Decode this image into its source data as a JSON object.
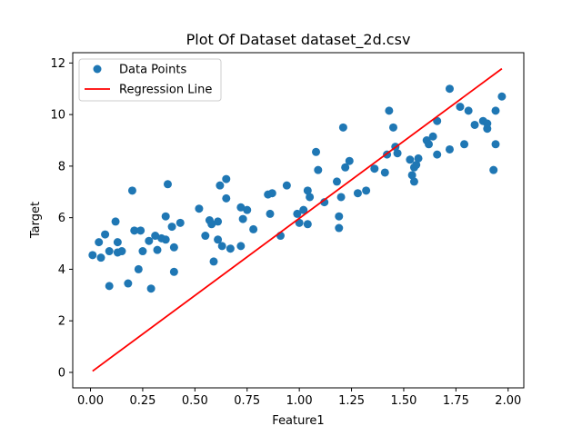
{
  "chart_data": {
    "type": "scatter",
    "title": "Plot Of Dataset dataset_2d.csv",
    "xlabel": "Feature1",
    "ylabel": "Target",
    "xlim": [
      -0.085,
      2.075
    ],
    "ylim": [
      -0.6,
      12.4
    ],
    "xticks": [
      "0.00",
      "0.25",
      "0.50",
      "0.75",
      "1.00",
      "1.25",
      "1.50",
      "1.75",
      "2.00"
    ],
    "yticks": [
      "0",
      "2",
      "4",
      "6",
      "8",
      "10",
      "12"
    ],
    "legend_placement": "top-left",
    "grid": false,
    "series": [
      {
        "name": "Data Points",
        "kind": "scatter",
        "color": "#1f77b4",
        "points": [
          [
            0.01,
            4.55
          ],
          [
            0.04,
            5.05
          ],
          [
            0.05,
            4.45
          ],
          [
            0.07,
            5.35
          ],
          [
            0.09,
            3.35
          ],
          [
            0.09,
            4.7
          ],
          [
            0.12,
            5.85
          ],
          [
            0.13,
            5.05
          ],
          [
            0.13,
            4.65
          ],
          [
            0.15,
            4.7
          ],
          [
            0.18,
            3.45
          ],
          [
            0.2,
            7.05
          ],
          [
            0.21,
            5.5
          ],
          [
            0.23,
            4.0
          ],
          [
            0.24,
            5.5
          ],
          [
            0.25,
            4.7
          ],
          [
            0.28,
            5.1
          ],
          [
            0.29,
            3.25
          ],
          [
            0.31,
            5.3
          ],
          [
            0.32,
            4.75
          ],
          [
            0.34,
            5.2
          ],
          [
            0.36,
            5.15
          ],
          [
            0.36,
            6.05
          ],
          [
            0.37,
            7.3
          ],
          [
            0.39,
            5.65
          ],
          [
            0.4,
            4.85
          ],
          [
            0.4,
            3.9
          ],
          [
            0.43,
            5.8
          ],
          [
            0.52,
            6.35
          ],
          [
            0.55,
            5.3
          ],
          [
            0.57,
            5.9
          ],
          [
            0.58,
            5.75
          ],
          [
            0.59,
            4.3
          ],
          [
            0.61,
            5.15
          ],
          [
            0.61,
            5.85
          ],
          [
            0.62,
            7.25
          ],
          [
            0.63,
            4.9
          ],
          [
            0.65,
            7.5
          ],
          [
            0.65,
            6.75
          ],
          [
            0.67,
            4.8
          ],
          [
            0.72,
            4.9
          ],
          [
            0.72,
            6.4
          ],
          [
            0.73,
            5.95
          ],
          [
            0.75,
            6.3
          ],
          [
            0.78,
            5.55
          ],
          [
            0.85,
            6.9
          ],
          [
            0.86,
            6.15
          ],
          [
            0.87,
            6.95
          ],
          [
            0.91,
            5.3
          ],
          [
            0.94,
            7.25
          ],
          [
            0.99,
            6.15
          ],
          [
            1.0,
            5.8
          ],
          [
            1.02,
            6.3
          ],
          [
            1.04,
            5.75
          ],
          [
            1.04,
            7.05
          ],
          [
            1.05,
            6.8
          ],
          [
            1.08,
            8.55
          ],
          [
            1.09,
            7.85
          ],
          [
            1.12,
            6.6
          ],
          [
            1.18,
            7.4
          ],
          [
            1.19,
            6.05
          ],
          [
            1.19,
            5.6
          ],
          [
            1.2,
            6.8
          ],
          [
            1.21,
            9.5
          ],
          [
            1.22,
            7.95
          ],
          [
            1.24,
            8.2
          ],
          [
            1.28,
            6.95
          ],
          [
            1.32,
            7.05
          ],
          [
            1.36,
            7.9
          ],
          [
            1.41,
            7.75
          ],
          [
            1.42,
            8.45
          ],
          [
            1.43,
            10.15
          ],
          [
            1.45,
            9.5
          ],
          [
            1.46,
            8.75
          ],
          [
            1.47,
            8.5
          ],
          [
            1.53,
            8.25
          ],
          [
            1.54,
            7.65
          ],
          [
            1.55,
            7.95
          ],
          [
            1.55,
            7.4
          ],
          [
            1.56,
            8.05
          ],
          [
            1.57,
            8.3
          ],
          [
            1.61,
            9.0
          ],
          [
            1.62,
            8.85
          ],
          [
            1.64,
            9.15
          ],
          [
            1.66,
            8.45
          ],
          [
            1.66,
            9.75
          ],
          [
            1.72,
            11.0
          ],
          [
            1.72,
            8.65
          ],
          [
            1.77,
            10.3
          ],
          [
            1.79,
            8.85
          ],
          [
            1.81,
            10.15
          ],
          [
            1.84,
            9.6
          ],
          [
            1.88,
            9.75
          ],
          [
            1.9,
            9.45
          ],
          [
            1.9,
            9.65
          ],
          [
            1.93,
            7.85
          ],
          [
            1.94,
            8.85
          ],
          [
            1.94,
            10.15
          ],
          [
            1.97,
            10.7
          ]
        ]
      },
      {
        "name": "Regression Line",
        "kind": "line",
        "color": "#ff0000",
        "points": [
          [
            0.01,
            0.05
          ],
          [
            1.97,
            11.78
          ]
        ]
      }
    ]
  }
}
